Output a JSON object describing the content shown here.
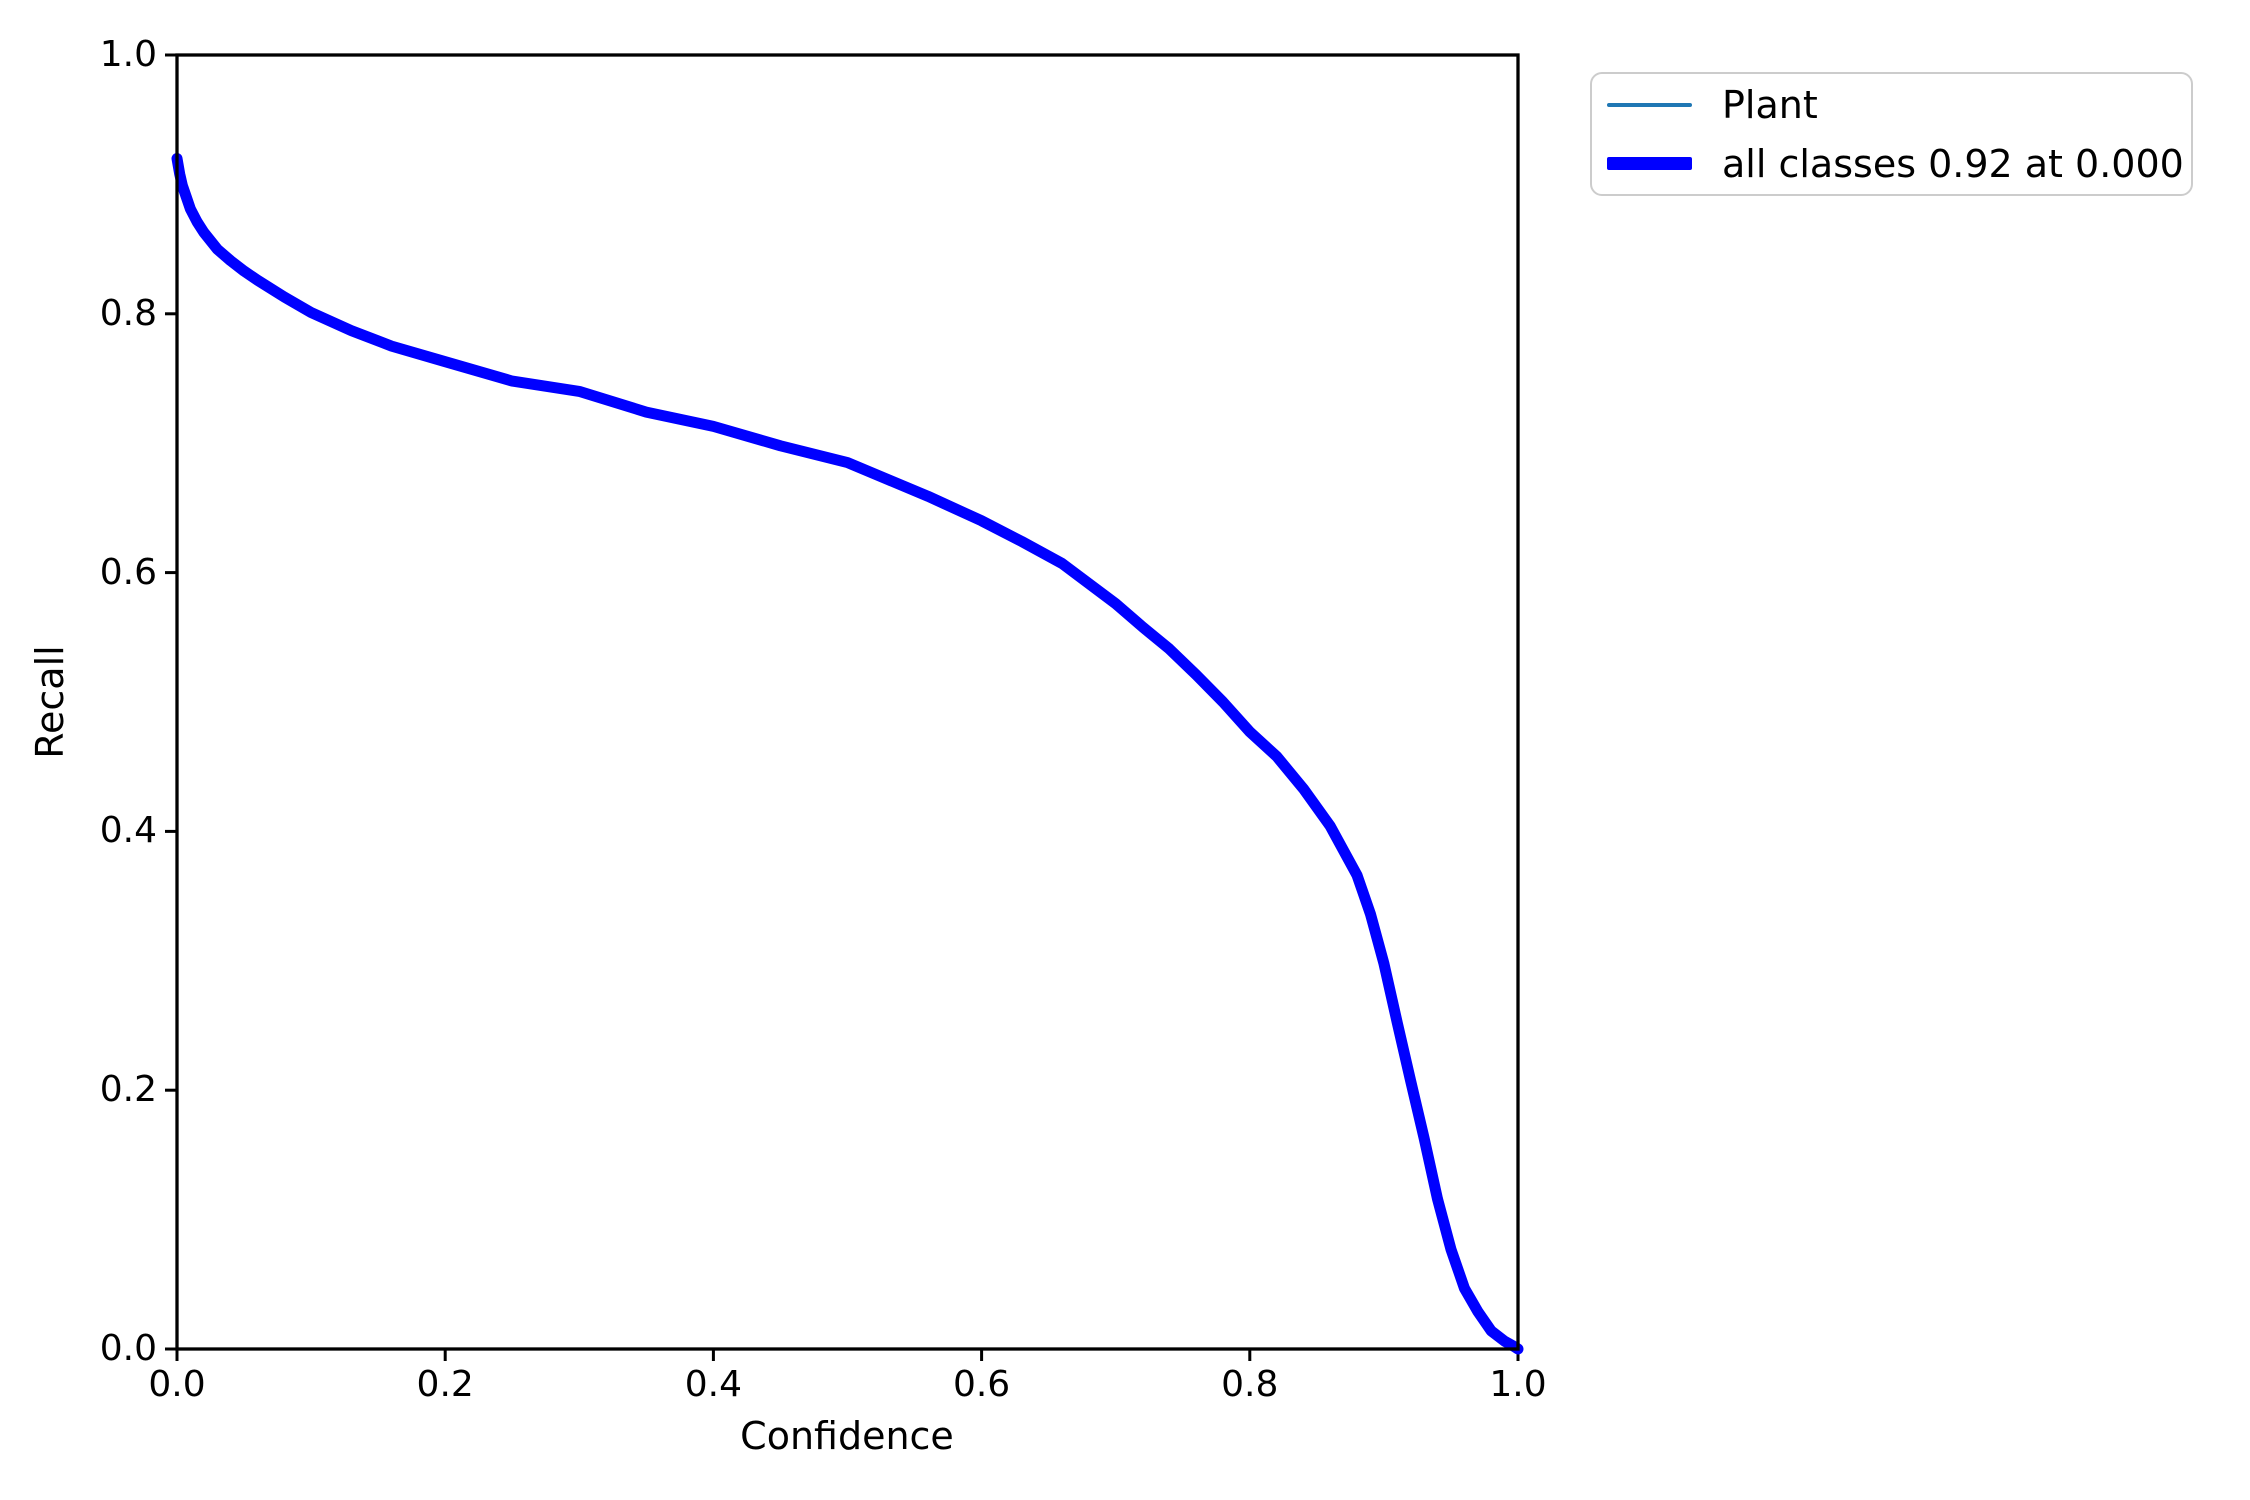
{
  "figure": {
    "background_color": "#ffffff"
  },
  "chart_data": {
    "type": "line",
    "title": "",
    "xlabel": "Confidence",
    "ylabel": "Recall",
    "xlim": [
      0.0,
      1.0
    ],
    "ylim": [
      0.0,
      1.0
    ],
    "grid": false,
    "spine_color": "#000000",
    "xticks": [
      0.0,
      0.2,
      0.4,
      0.6,
      0.8,
      1.0
    ],
    "xtick_labels": [
      "0.0",
      "0.2",
      "0.4",
      "0.6",
      "0.8",
      "1.0"
    ],
    "yticks": [
      0.0,
      0.2,
      0.4,
      0.6,
      0.8,
      1.0
    ],
    "ytick_labels": [
      "0.0",
      "0.2",
      "0.4",
      "0.6",
      "0.8",
      "1.0"
    ],
    "x": [
      0.0,
      0.002,
      0.004,
      0.007,
      0.01,
      0.015,
      0.02,
      0.03,
      0.04,
      0.05,
      0.06,
      0.08,
      0.1,
      0.13,
      0.16,
      0.2,
      0.25,
      0.3,
      0.35,
      0.4,
      0.45,
      0.5,
      0.53,
      0.56,
      0.6,
      0.63,
      0.66,
      0.7,
      0.72,
      0.74,
      0.76,
      0.78,
      0.8,
      0.82,
      0.84,
      0.86,
      0.88,
      0.89,
      0.9,
      0.91,
      0.92,
      0.93,
      0.94,
      0.95,
      0.96,
      0.97,
      0.98,
      0.99,
      0.997,
      1.0
    ],
    "y": [
      0.92,
      0.908,
      0.899,
      0.89,
      0.881,
      0.871,
      0.863,
      0.85,
      0.841,
      0.833,
      0.826,
      0.813,
      0.801,
      0.787,
      0.775,
      0.763,
      0.748,
      0.74,
      0.724,
      0.713,
      0.698,
      0.685,
      0.672,
      0.659,
      0.64,
      0.624,
      0.607,
      0.576,
      0.558,
      0.541,
      0.521,
      0.5,
      0.477,
      0.458,
      0.433,
      0.404,
      0.366,
      0.336,
      0.298,
      0.252,
      0.207,
      0.163,
      0.116,
      0.077,
      0.047,
      0.029,
      0.014,
      0.006,
      0.002,
      0.0
    ],
    "series": [
      {
        "name": "Plant",
        "color": "#1f77b4",
        "linewidth": 3
      },
      {
        "name": "all classes",
        "color": "#0000ff",
        "linewidth": 11
      }
    ],
    "legend_position": "outside-upper-right"
  },
  "legend": {
    "items": [
      {
        "label": "Plant",
        "color": "#1f77b4",
        "thickness": 4
      },
      {
        "label": "all classes 0.92 at 0.000",
        "color": "#0000ff",
        "thickness": 13
      }
    ]
  }
}
